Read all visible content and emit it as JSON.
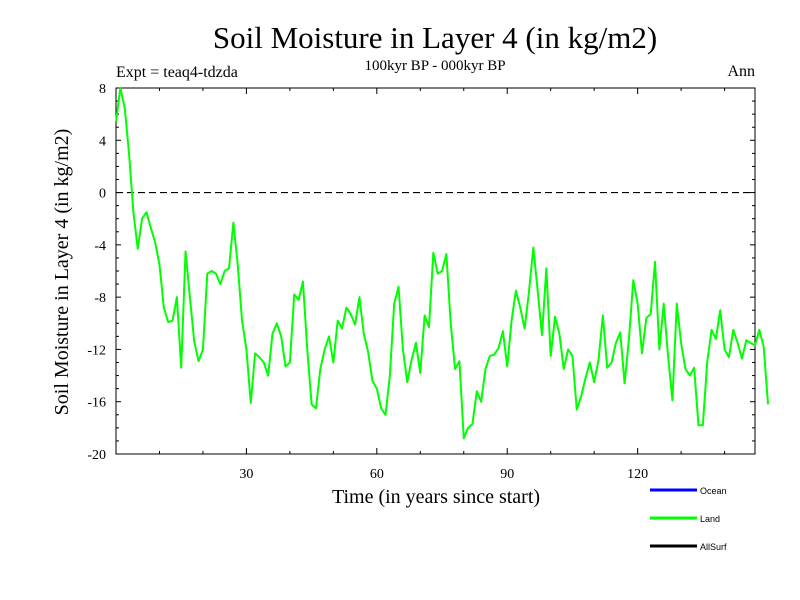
{
  "chart_data": {
    "type": "line",
    "title": "Soil Moisture in Layer 4 (in kg/m2)",
    "subtitle": "100kyr BP - 000kyr BP",
    "experiment_label": "Expt = teaq4-tdzda",
    "season_label": "Ann",
    "xlabel": "Time (in years since start)",
    "ylabel": "Soil Moisture in Layer 4 (in kg/m2)",
    "xlim": [
      0,
      147
    ],
    "ylim": [
      -20,
      8
    ],
    "x_ticks": [
      30,
      60,
      90,
      120
    ],
    "y_ticks": [
      8,
      4,
      0,
      -4,
      -8,
      -12,
      -16,
      -20
    ],
    "zero_line": {
      "y": 0,
      "style": "dashed"
    },
    "legend": [
      {
        "name": "Ocean",
        "color": "#0000ff"
      },
      {
        "name": "Land",
        "color": "#00ff00"
      },
      {
        "name": "AllSurf",
        "color": "#000000"
      }
    ],
    "series": [
      {
        "name": "Land",
        "color": "#00ff00",
        "x_start": 0,
        "x_step": 1,
        "values": [
          5.4,
          8.0,
          6.5,
          3.0,
          -1.5,
          -4.3,
          -2.0,
          -1.5,
          -2.7,
          -3.8,
          -5.5,
          -8.8,
          -9.9,
          -9.8,
          -8.0,
          -13.4,
          -4.5,
          -8.0,
          -11.4,
          -12.9,
          -12.0,
          -6.2,
          -6.0,
          -6.2,
          -7.0,
          -6.0,
          -5.8,
          -2.3,
          -5.5,
          -9.8,
          -12.0,
          -16.1,
          -12.3,
          -12.6,
          -13.0,
          -14.0,
          -10.8,
          -10.0,
          -11.0,
          -13.3,
          -13.0,
          -7.8,
          -8.2,
          -6.8,
          -12.0,
          -16.2,
          -16.5,
          -13.5,
          -12.0,
          -11.0,
          -13.0,
          -9.8,
          -10.4,
          -8.8,
          -9.3,
          -10.1,
          -8.0,
          -10.8,
          -12.2,
          -14.4,
          -15.0,
          -16.5,
          -17.0,
          -14.0,
          -8.5,
          -7.2,
          -12.0,
          -14.5,
          -12.8,
          -11.5,
          -13.8,
          -9.4,
          -10.3,
          -4.6,
          -6.2,
          -6.0,
          -4.7,
          -10.0,
          -13.5,
          -12.9,
          -18.8,
          -18.0,
          -17.7,
          -15.2,
          -16.0,
          -13.5,
          -12.5,
          -12.4,
          -11.9,
          -10.6,
          -13.3,
          -9.8,
          -7.5,
          -8.8,
          -10.4,
          -7.6,
          -4.2,
          -7.5,
          -10.9,
          -5.8,
          -12.5,
          -9.5,
          -10.8,
          -13.5,
          -12.0,
          -12.5,
          -16.6,
          -15.6,
          -14.2,
          -13.0,
          -14.5,
          -12.8,
          -9.4,
          -13.4,
          -13.0,
          -11.5,
          -10.7,
          -14.6,
          -11.2,
          -6.7,
          -8.5,
          -12.3,
          -9.6,
          -9.3,
          -5.3,
          -12.0,
          -8.5,
          -12.5,
          -15.9,
          -8.5,
          -11.5,
          -13.5,
          -14.0,
          -13.4,
          -17.8,
          -17.8,
          -13.0,
          -10.5,
          -11.2,
          -9.0,
          -12.0,
          -12.6,
          -10.5,
          -11.5,
          -12.7,
          -11.3,
          -11.5,
          -11.7,
          -10.5,
          -11.8,
          -16.2
        ]
      }
    ]
  }
}
